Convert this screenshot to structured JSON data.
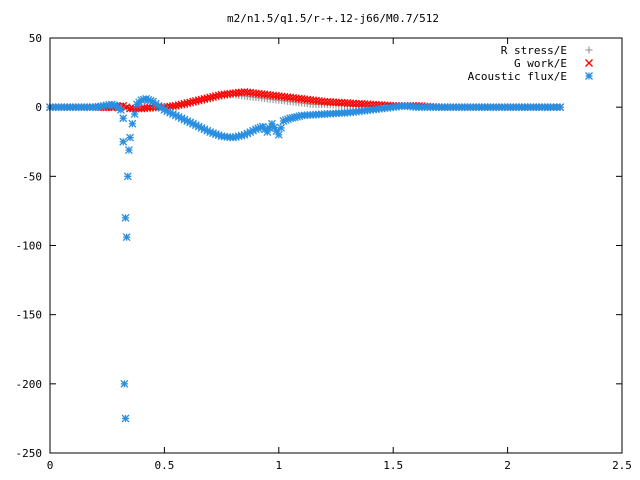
{
  "chart_data": {
    "type": "scatter",
    "title": "m2/n1.5/q1.5/r-+.12-j66/M0.7/512",
    "xlabel": "",
    "ylabel": "",
    "xlim": [
      0,
      2.5
    ],
    "ylim": [
      -250,
      50
    ],
    "xticks": [
      "0",
      "0.5",
      "1",
      "1.5",
      "2",
      "2.5"
    ],
    "yticks": [
      "50",
      "0",
      "-50",
      "-100",
      "-150",
      "-200",
      "-250"
    ],
    "grid": false,
    "legend_position": "top-right",
    "series": [
      {
        "name": "R stress/E",
        "marker": "plus",
        "color": "#a0a0a0",
        "x": [
          0,
          0.1,
          0.2,
          0.28,
          0.32,
          0.35,
          0.4,
          0.45,
          0.5,
          0.55,
          0.6,
          0.65,
          0.7,
          0.75,
          0.8,
          0.85,
          0.9,
          0.95,
          1.0,
          1.05,
          1.1,
          1.15,
          1.2,
          1.3,
          1.4,
          1.5,
          1.55,
          1.6,
          1.7,
          1.8,
          1.9,
          2.0,
          2.1,
          2.2,
          2.23
        ],
        "y": [
          0,
          0,
          0,
          0,
          0,
          -1,
          -1,
          -1,
          0,
          1,
          2,
          4,
          6,
          8,
          9,
          8,
          7,
          6,
          5,
          4,
          3,
          2,
          2,
          1,
          0,
          0,
          1,
          1,
          0,
          0,
          0,
          0,
          0,
          0,
          0
        ]
      },
      {
        "name": "G work/E",
        "marker": "cross",
        "color": "#ff0000",
        "x": [
          0,
          0.1,
          0.2,
          0.28,
          0.32,
          0.35,
          0.4,
          0.45,
          0.5,
          0.55,
          0.6,
          0.65,
          0.7,
          0.75,
          0.8,
          0.85,
          0.9,
          0.95,
          1.0,
          1.05,
          1.1,
          1.15,
          1.2,
          1.3,
          1.4,
          1.5,
          1.55,
          1.6,
          1.7,
          1.8,
          1.9,
          2.0,
          2.1,
          2.2,
          2.23
        ],
        "y": [
          0,
          0,
          0,
          0,
          1,
          -1,
          -1,
          0,
          0,
          1,
          3,
          5,
          7,
          9,
          10,
          11,
          10,
          9,
          8,
          7,
          6,
          5,
          4,
          3,
          2,
          1,
          1,
          1,
          0,
          0,
          0,
          0,
          0,
          0,
          0
        ]
      },
      {
        "name": "Acoustic flux/E",
        "marker": "star",
        "color": "#2a8fe0",
        "x": [
          0,
          0.1,
          0.2,
          0.27,
          0.29,
          0.31,
          0.32,
          0.32,
          0.325,
          0.33,
          0.33,
          0.335,
          0.34,
          0.345,
          0.35,
          0.36,
          0.37,
          0.38,
          0.4,
          0.42,
          0.45,
          0.5,
          0.55,
          0.6,
          0.65,
          0.7,
          0.75,
          0.8,
          0.85,
          0.9,
          0.93,
          0.95,
          0.97,
          1.0,
          1.02,
          1.05,
          1.08,
          1.1,
          1.2,
          1.3,
          1.4,
          1.5,
          1.55,
          1.6,
          1.7,
          1.8,
          1.9,
          2.0,
          2.1,
          2.2,
          2.23
        ],
        "y": [
          0,
          0,
          0,
          2,
          1,
          -2,
          -8,
          -25,
          -200,
          -225,
          -80,
          -94,
          -50,
          -31,
          -22,
          -12,
          -5,
          2,
          5,
          6,
          4,
          -2,
          -6,
          -10,
          -14,
          -18,
          -21,
          -22,
          -20,
          -16,
          -14,
          -18,
          -12,
          -20,
          -10,
          -8,
          -7,
          -6,
          -5,
          -4,
          -2,
          0,
          1,
          0,
          0,
          0,
          0,
          0,
          0,
          0,
          0
        ]
      }
    ]
  }
}
